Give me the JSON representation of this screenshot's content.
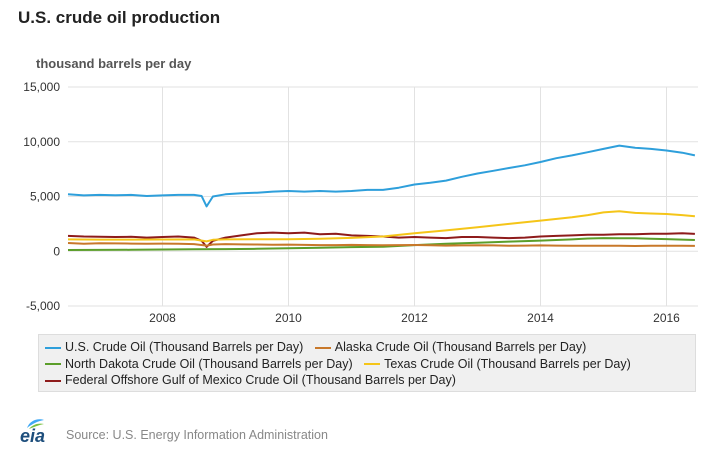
{
  "title": "U.S. crude oil production",
  "units": "thousand barrels per day",
  "source": "Source: U.S. Energy Information Administration",
  "logo_text": "eia",
  "chart_data": {
    "type": "line",
    "title": "U.S. crude oil production",
    "ylabel": "thousand barrels per day",
    "xlabel": "",
    "ylim": [
      -5000,
      15000
    ],
    "xlim": [
      2006.5,
      2016.5
    ],
    "yticks": [
      15000,
      10000,
      5000,
      0,
      -5000
    ],
    "ytick_labels": [
      "15,000",
      "10,000",
      "5,000",
      "0",
      "-5,000"
    ],
    "xticks": [
      2008,
      2010,
      2012,
      2014,
      2016
    ],
    "xtick_labels": [
      "2008",
      "2010",
      "2012",
      "2014",
      "2016"
    ],
    "grid": true,
    "legend_position": "bottom",
    "series": [
      {
        "name": "U.S. Crude Oil (Thousand Barrels per Day)",
        "color": "#2e9fdb",
        "points": [
          [
            2006.5,
            5200
          ],
          [
            2006.75,
            5100
          ],
          [
            2007.0,
            5150
          ],
          [
            2007.25,
            5120
          ],
          [
            2007.5,
            5150
          ],
          [
            2007.75,
            5050
          ],
          [
            2008.0,
            5100
          ],
          [
            2008.25,
            5150
          ],
          [
            2008.5,
            5150
          ],
          [
            2008.62,
            5050
          ],
          [
            2008.7,
            4100
          ],
          [
            2008.8,
            5000
          ],
          [
            2009.0,
            5200
          ],
          [
            2009.25,
            5300
          ],
          [
            2009.5,
            5350
          ],
          [
            2009.75,
            5450
          ],
          [
            2010.0,
            5500
          ],
          [
            2010.25,
            5450
          ],
          [
            2010.5,
            5500
          ],
          [
            2010.75,
            5450
          ],
          [
            2011.0,
            5500
          ],
          [
            2011.25,
            5600
          ],
          [
            2011.5,
            5600
          ],
          [
            2011.75,
            5800
          ],
          [
            2012.0,
            6100
          ],
          [
            2012.25,
            6250
          ],
          [
            2012.5,
            6450
          ],
          [
            2012.75,
            6800
          ],
          [
            2013.0,
            7100
          ],
          [
            2013.25,
            7350
          ],
          [
            2013.5,
            7600
          ],
          [
            2013.75,
            7850
          ],
          [
            2014.0,
            8150
          ],
          [
            2014.25,
            8500
          ],
          [
            2014.5,
            8750
          ],
          [
            2014.75,
            9050
          ],
          [
            2015.0,
            9350
          ],
          [
            2015.25,
            9650
          ],
          [
            2015.5,
            9450
          ],
          [
            2015.75,
            9350
          ],
          [
            2016.0,
            9200
          ],
          [
            2016.25,
            9000
          ],
          [
            2016.45,
            8750
          ]
        ]
      },
      {
        "name": "Alaska Crude Oil (Thousand Barrels per Day)",
        "color": "#c8782a",
        "points": [
          [
            2006.5,
            750
          ],
          [
            2006.75,
            680
          ],
          [
            2007.0,
            730
          ],
          [
            2007.25,
            720
          ],
          [
            2007.5,
            700
          ],
          [
            2007.75,
            690
          ],
          [
            2008.0,
            700
          ],
          [
            2008.25,
            680
          ],
          [
            2008.5,
            650
          ],
          [
            2008.7,
            520
          ],
          [
            2008.8,
            620
          ],
          [
            2009.0,
            650
          ],
          [
            2009.25,
            630
          ],
          [
            2009.5,
            620
          ],
          [
            2009.75,
            600
          ],
          [
            2010.0,
            610
          ],
          [
            2010.25,
            580
          ],
          [
            2010.5,
            560
          ],
          [
            2010.75,
            560
          ],
          [
            2011.0,
            580
          ],
          [
            2011.25,
            560
          ],
          [
            2011.5,
            540
          ],
          [
            2011.75,
            560
          ],
          [
            2012.0,
            570
          ],
          [
            2012.25,
            550
          ],
          [
            2012.5,
            520
          ],
          [
            2012.75,
            530
          ],
          [
            2013.0,
            550
          ],
          [
            2013.25,
            530
          ],
          [
            2013.5,
            510
          ],
          [
            2013.75,
            520
          ],
          [
            2014.0,
            530
          ],
          [
            2014.25,
            520
          ],
          [
            2014.5,
            500
          ],
          [
            2014.75,
            510
          ],
          [
            2015.0,
            500
          ],
          [
            2015.25,
            500
          ],
          [
            2015.5,
            480
          ],
          [
            2015.75,
            500
          ],
          [
            2016.0,
            510
          ],
          [
            2016.25,
            500
          ],
          [
            2016.45,
            490
          ]
        ]
      },
      {
        "name": "North Dakota Crude Oil (Thousand Barrels per Day)",
        "color": "#5b9e2a",
        "points": [
          [
            2006.5,
            110
          ],
          [
            2007.0,
            120
          ],
          [
            2007.5,
            130
          ],
          [
            2008.0,
            160
          ],
          [
            2008.5,
            180
          ],
          [
            2009.0,
            200
          ],
          [
            2009.5,
            220
          ],
          [
            2010.0,
            270
          ],
          [
            2010.5,
            320
          ],
          [
            2011.0,
            380
          ],
          [
            2011.5,
            420
          ],
          [
            2012.0,
            560
          ],
          [
            2012.5,
            680
          ],
          [
            2013.0,
            780
          ],
          [
            2013.5,
            880
          ],
          [
            2014.0,
            970
          ],
          [
            2014.5,
            1080
          ],
          [
            2014.75,
            1160
          ],
          [
            2015.0,
            1200
          ],
          [
            2015.25,
            1190
          ],
          [
            2015.5,
            1180
          ],
          [
            2015.75,
            1150
          ],
          [
            2016.0,
            1110
          ],
          [
            2016.25,
            1060
          ],
          [
            2016.45,
            1030
          ]
        ]
      },
      {
        "name": "Texas Crude Oil (Thousand Barrels per Day)",
        "color": "#f5c518",
        "points": [
          [
            2006.5,
            1080
          ],
          [
            2007.0,
            1060
          ],
          [
            2007.5,
            1060
          ],
          [
            2008.0,
            1070
          ],
          [
            2008.5,
            1080
          ],
          [
            2008.7,
            900
          ],
          [
            2008.8,
            1050
          ],
          [
            2009.0,
            1080
          ],
          [
            2009.5,
            1090
          ],
          [
            2010.0,
            1100
          ],
          [
            2010.5,
            1150
          ],
          [
            2011.0,
            1220
          ],
          [
            2011.5,
            1350
          ],
          [
            2012.0,
            1650
          ],
          [
            2012.5,
            1900
          ],
          [
            2013.0,
            2200
          ],
          [
            2013.5,
            2500
          ],
          [
            2014.0,
            2800
          ],
          [
            2014.5,
            3100
          ],
          [
            2014.75,
            3300
          ],
          [
            2015.0,
            3550
          ],
          [
            2015.25,
            3650
          ],
          [
            2015.5,
            3500
          ],
          [
            2015.75,
            3450
          ],
          [
            2016.0,
            3400
          ],
          [
            2016.25,
            3300
          ],
          [
            2016.45,
            3200
          ]
        ]
      },
      {
        "name": "Federal Offshore Gulf of Mexico Crude Oil (Thousand Barrels per Day)",
        "color": "#8e1b1b",
        "points": [
          [
            2006.5,
            1400
          ],
          [
            2006.75,
            1350
          ],
          [
            2007.0,
            1330
          ],
          [
            2007.25,
            1300
          ],
          [
            2007.5,
            1320
          ],
          [
            2007.75,
            1250
          ],
          [
            2008.0,
            1300
          ],
          [
            2008.25,
            1350
          ],
          [
            2008.5,
            1250
          ],
          [
            2008.62,
            950
          ],
          [
            2008.7,
            400
          ],
          [
            2008.8,
            950
          ],
          [
            2009.0,
            1250
          ],
          [
            2009.25,
            1450
          ],
          [
            2009.5,
            1650
          ],
          [
            2009.75,
            1700
          ],
          [
            2010.0,
            1650
          ],
          [
            2010.25,
            1700
          ],
          [
            2010.5,
            1550
          ],
          [
            2010.75,
            1600
          ],
          [
            2011.0,
            1450
          ],
          [
            2011.25,
            1400
          ],
          [
            2011.5,
            1350
          ],
          [
            2011.75,
            1250
          ],
          [
            2012.0,
            1300
          ],
          [
            2012.25,
            1250
          ],
          [
            2012.5,
            1200
          ],
          [
            2012.75,
            1300
          ],
          [
            2013.0,
            1300
          ],
          [
            2013.25,
            1250
          ],
          [
            2013.5,
            1200
          ],
          [
            2013.75,
            1250
          ],
          [
            2014.0,
            1350
          ],
          [
            2014.25,
            1400
          ],
          [
            2014.5,
            1450
          ],
          [
            2014.75,
            1500
          ],
          [
            2015.0,
            1500
          ],
          [
            2015.25,
            1550
          ],
          [
            2015.5,
            1550
          ],
          [
            2015.75,
            1600
          ],
          [
            2016.0,
            1600
          ],
          [
            2016.25,
            1650
          ],
          [
            2016.45,
            1580
          ]
        ]
      }
    ]
  }
}
